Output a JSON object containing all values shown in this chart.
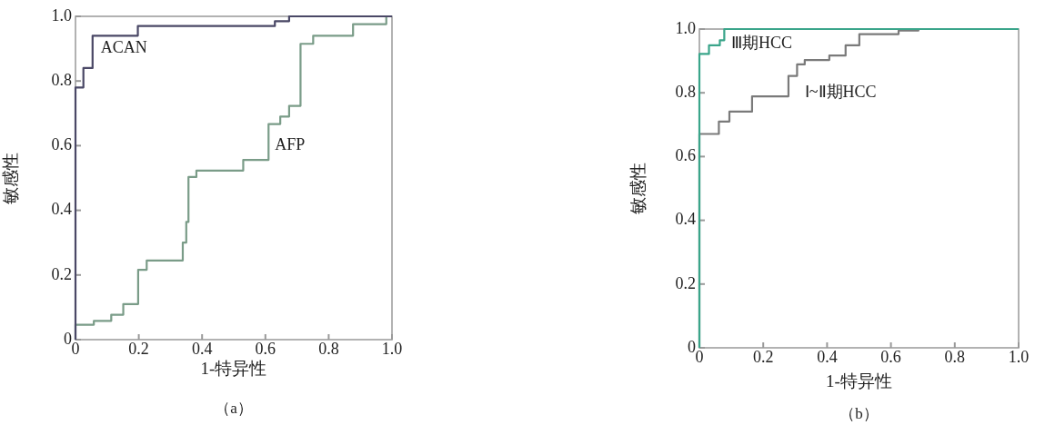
{
  "chart_data": [
    {
      "type": "step",
      "xlabel": "1-特异性",
      "ylabel": "敏感性",
      "xlim": [
        0,
        1
      ],
      "ylim": [
        0,
        1
      ],
      "xticks": [
        0,
        0.2,
        0.4,
        0.6,
        0.8,
        {
          "value": 1,
          "label": "1.0"
        }
      ],
      "yticks": [
        0,
        0.2,
        0.4,
        0.6,
        0.8,
        {
          "value": 1,
          "label": "1.0"
        }
      ],
      "grid": false,
      "legend": false,
      "marker": "none",
      "series": [
        {
          "name": "ACAN",
          "color": "#4a4866",
          "x": [
            0,
            0,
            0.025,
            0.054,
            0.197,
            0.63,
            0.675,
            1
          ],
          "values": [
            0,
            0.78,
            0.84,
            0.94,
            0.97,
            0.985,
            1,
            1
          ]
        },
        {
          "name": "AFP",
          "color": "#7a9c88",
          "x": [
            0,
            0,
            0.058,
            0.113,
            0.151,
            0.198,
            0.225,
            0.339,
            0.35,
            0.357,
            0.382,
            0.53,
            0.61,
            0.647,
            0.675,
            0.711,
            0.751,
            0.877,
            0.982,
            1
          ],
          "values": [
            0,
            0.046,
            0.058,
            0.077,
            0.11,
            0.216,
            0.245,
            0.3,
            0.364,
            0.503,
            0.523,
            0.556,
            0.667,
            0.69,
            0.723,
            0.915,
            0.94,
            0.976,
            1,
            1
          ]
        }
      ],
      "annotations": [
        "（a）"
      ]
    },
    {
      "type": "step",
      "xlabel": "1-特异性",
      "ylabel": "敏感性",
      "xlim": [
        0,
        1
      ],
      "ylim": [
        0,
        1
      ],
      "xticks": [
        0,
        0.2,
        0.4,
        0.6,
        0.8,
        {
          "value": 1,
          "label": "1.0"
        }
      ],
      "yticks": [
        0,
        0.2,
        0.4,
        0.6,
        0.8,
        {
          "value": 1,
          "label": "1.0"
        }
      ],
      "grid": false,
      "legend": false,
      "marker": "none",
      "series": [
        {
          "name": "Ⅲ期HCC",
          "color": "#3aa58a",
          "x": [
            0,
            0,
            0.03,
            0.064,
            0.078,
            1
          ],
          "values": [
            0,
            0.922,
            0.949,
            0.965,
            1,
            1
          ]
        },
        {
          "name": "Ⅰ~Ⅱ期HCC",
          "color": "#7a7a7a",
          "x": [
            0,
            0,
            0.061,
            0.094,
            0.165,
            0.279,
            0.306,
            0.33,
            0.407,
            0.458,
            0.501,
            0.624,
            0.686,
            1
          ],
          "values": [
            0,
            0.671,
            0.71,
            0.741,
            0.789,
            0.853,
            0.889,
            0.903,
            0.917,
            0.949,
            0.984,
            0.995,
            1,
            1
          ]
        }
      ],
      "annotations": [
        "（b）"
      ]
    }
  ]
}
